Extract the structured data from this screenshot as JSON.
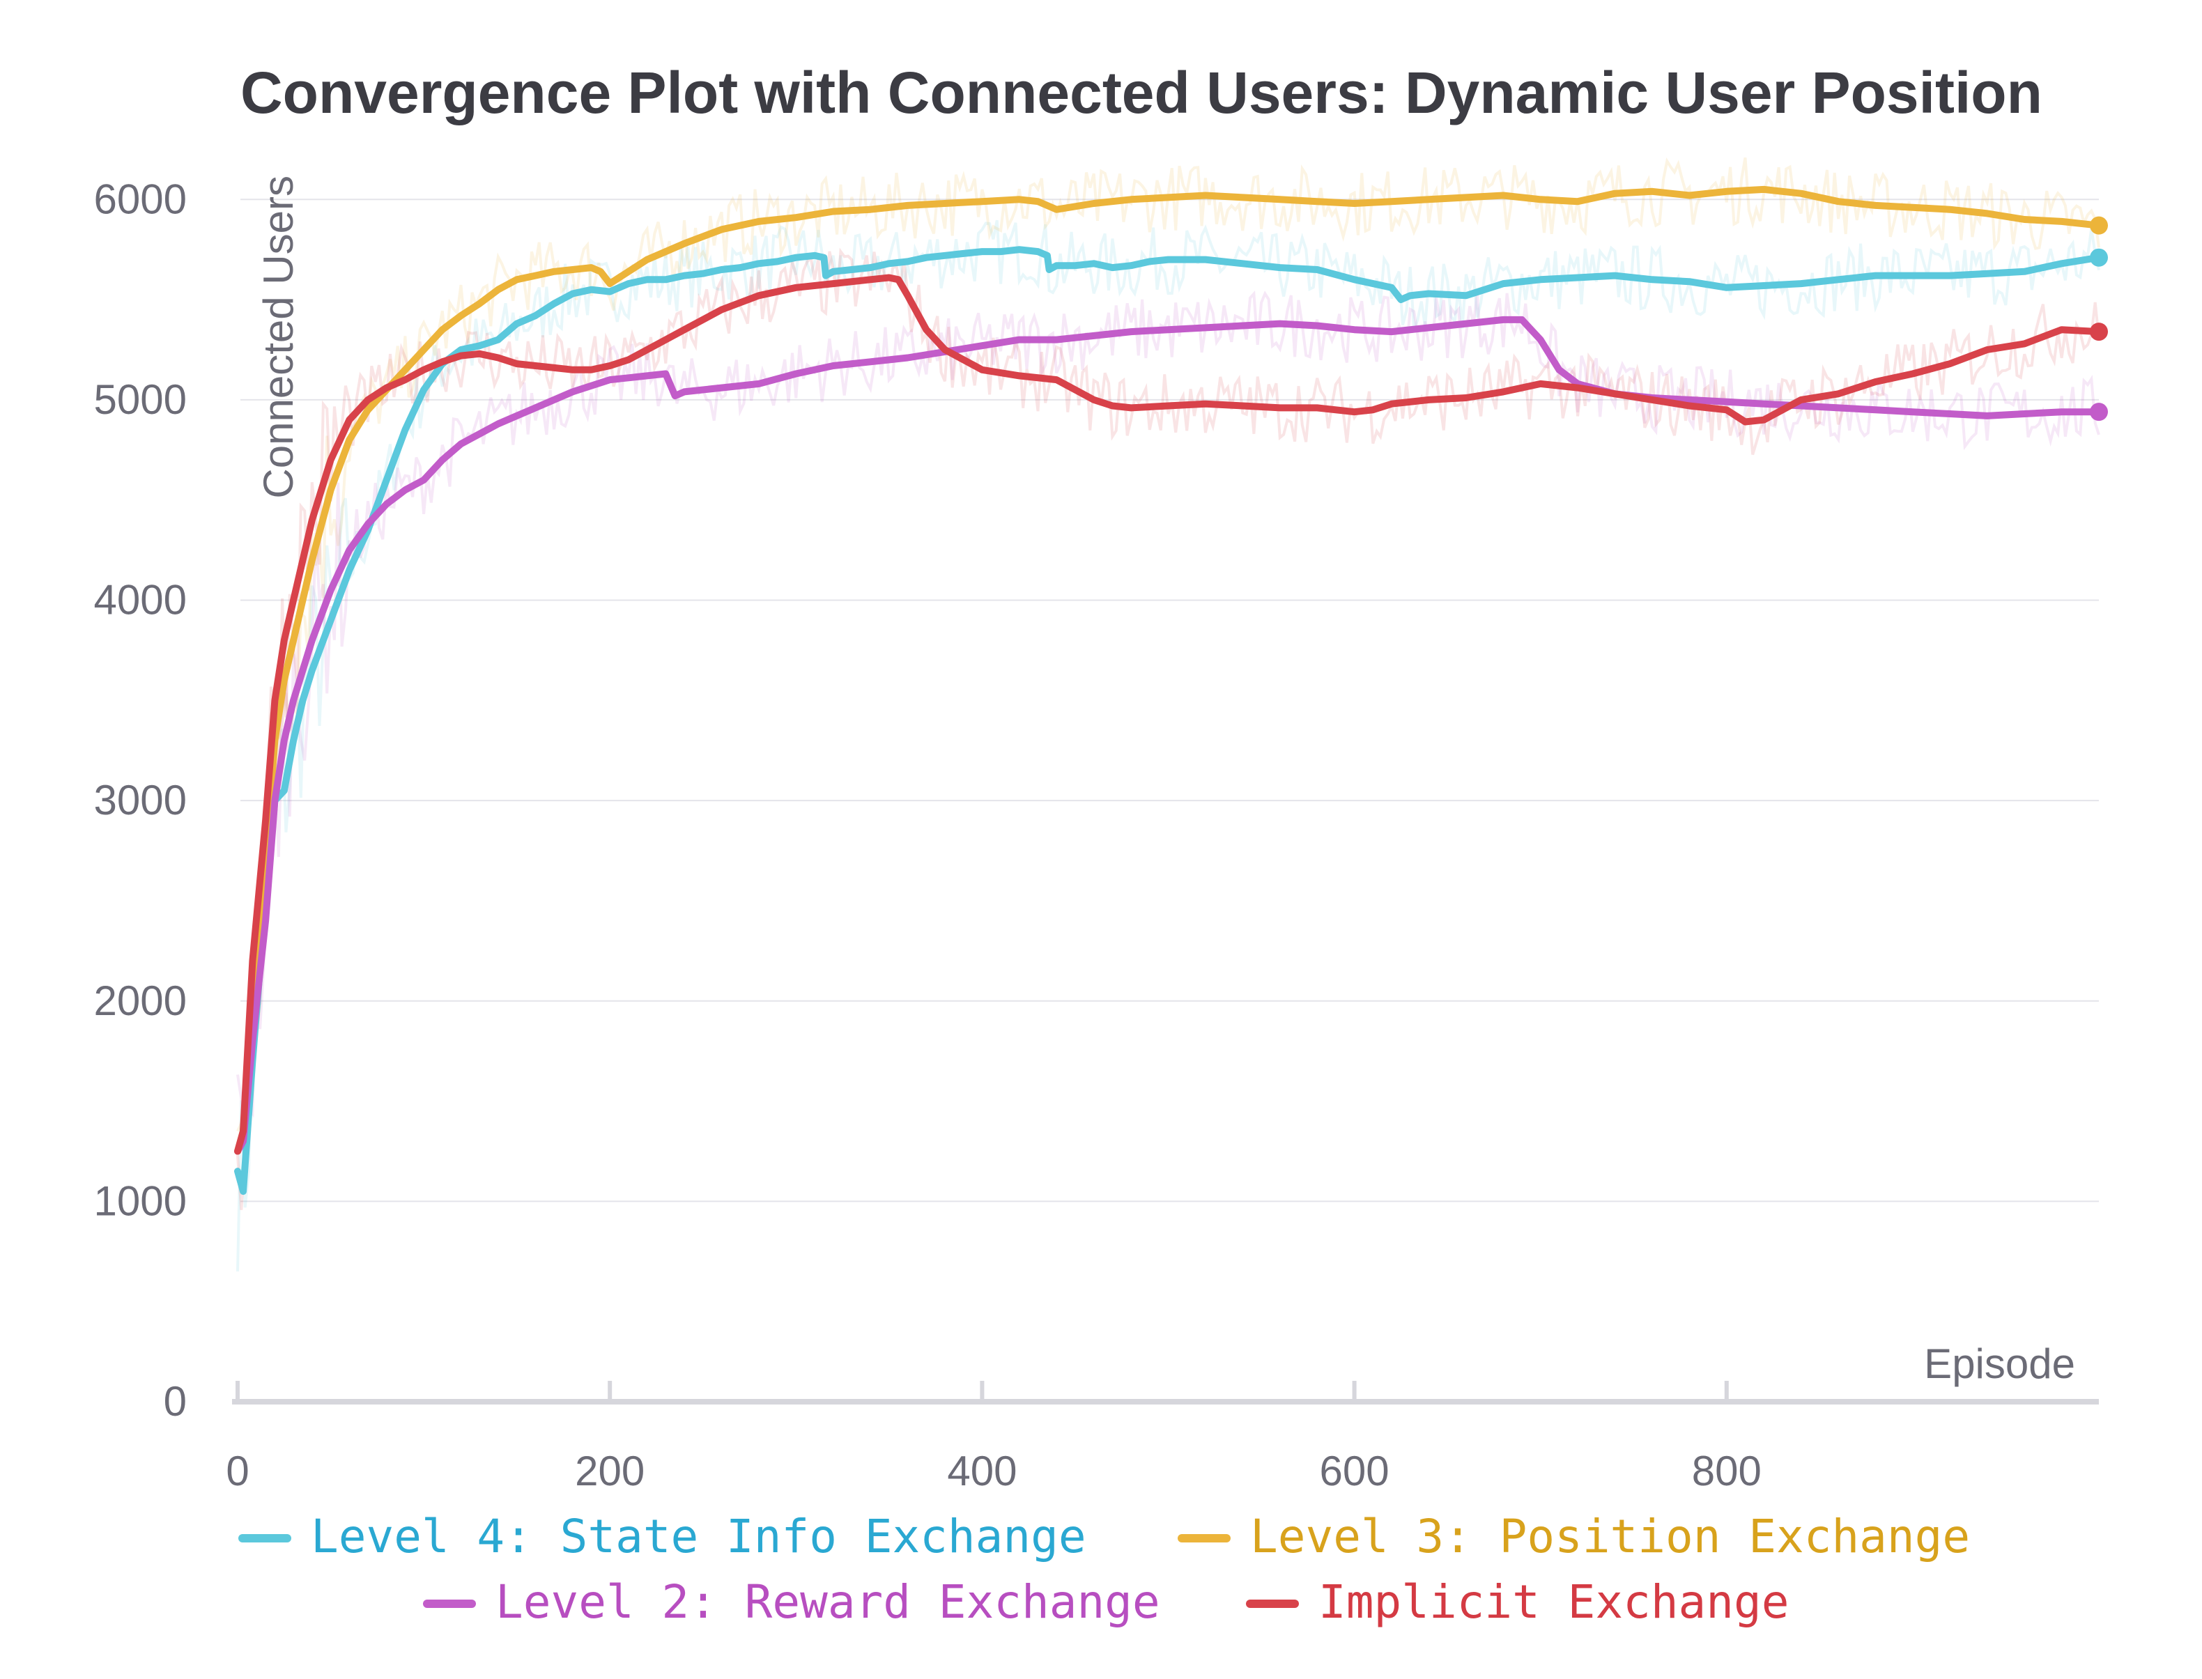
{
  "chart_data": {
    "type": "line",
    "title": "Convergence Plot with Connected Users: Dynamic User Position",
    "xlabel": "Episode",
    "ylabel": "Connected Users",
    "xlim": [
      0,
      1000
    ],
    "ylim": [
      0,
      6300
    ],
    "x_ticks": [
      0,
      200,
      400,
      600,
      800
    ],
    "y_ticks": [
      0,
      1000,
      2000,
      3000,
      4000,
      5000,
      6000
    ],
    "grid": true,
    "legend_position": "bottom",
    "series": [
      {
        "name": "Level 4: State Info Exchange",
        "color": "#5bc8dc",
        "label_color": "#2aa8d2",
        "x": [
          0,
          3,
          8,
          15,
          20,
          25,
          30,
          35,
          40,
          50,
          60,
          70,
          80,
          90,
          100,
          110,
          120,
          130,
          140,
          150,
          160,
          170,
          180,
          190,
          200,
          210,
          220,
          230,
          240,
          250,
          260,
          270,
          280,
          290,
          300,
          310,
          315,
          316,
          320,
          330,
          340,
          350,
          360,
          370,
          380,
          390,
          400,
          410,
          420,
          430,
          435,
          436,
          440,
          450,
          460,
          470,
          480,
          490,
          500,
          520,
          540,
          560,
          580,
          600,
          620,
          625,
          630,
          640,
          660,
          680,
          700,
          720,
          740,
          760,
          780,
          800,
          820,
          840,
          860,
          880,
          900,
          920,
          940,
          960,
          980,
          1000
        ],
        "values": [
          1150,
          1050,
          1700,
          2500,
          3000,
          3050,
          3300,
          3500,
          3650,
          3900,
          4150,
          4350,
          4600,
          4850,
          5050,
          5180,
          5250,
          5270,
          5300,
          5380,
          5420,
          5480,
          5530,
          5550,
          5540,
          5580,
          5600,
          5600,
          5620,
          5630,
          5650,
          5660,
          5680,
          5690,
          5710,
          5720,
          5710,
          5620,
          5640,
          5650,
          5660,
          5680,
          5690,
          5710,
          5720,
          5730,
          5740,
          5740,
          5750,
          5740,
          5720,
          5650,
          5670,
          5670,
          5680,
          5660,
          5670,
          5690,
          5700,
          5700,
          5680,
          5660,
          5650,
          5600,
          5560,
          5500,
          5520,
          5530,
          5520,
          5580,
          5600,
          5610,
          5620,
          5600,
          5590,
          5560,
          5570,
          5580,
          5600,
          5620,
          5620,
          5620,
          5630,
          5640,
          5680,
          5710
        ]
      },
      {
        "name": "Level 3: Position Exchange",
        "color": "#ecb43a",
        "label_color": "#d8a21c",
        "x": [
          0,
          3,
          8,
          15,
          20,
          25,
          30,
          40,
          50,
          60,
          70,
          80,
          90,
          100,
          110,
          120,
          130,
          140,
          150,
          160,
          170,
          180,
          190,
          195,
          200,
          210,
          220,
          240,
          260,
          280,
          300,
          320,
          340,
          360,
          380,
          400,
          420,
          430,
          440,
          460,
          480,
          500,
          520,
          540,
          560,
          580,
          600,
          620,
          640,
          660,
          680,
          700,
          720,
          740,
          760,
          780,
          800,
          820,
          840,
          860,
          880,
          900,
          920,
          940,
          960,
          980,
          1000
        ],
        "values": [
          1250,
          1350,
          1900,
          2700,
          3300,
          3600,
          3800,
          4200,
          4550,
          4800,
          4950,
          5050,
          5150,
          5250,
          5350,
          5420,
          5480,
          5550,
          5600,
          5620,
          5640,
          5650,
          5660,
          5640,
          5580,
          5640,
          5700,
          5780,
          5850,
          5890,
          5910,
          5940,
          5950,
          5970,
          5980,
          5990,
          6000,
          5990,
          5950,
          5980,
          6000,
          6010,
          6020,
          6010,
          6000,
          5990,
          5980,
          5990,
          6000,
          6010,
          6020,
          6000,
          5990,
          6030,
          6040,
          6020,
          6040,
          6050,
          6030,
          5990,
          5970,
          5960,
          5950,
          5930,
          5900,
          5890,
          5870
        ]
      },
      {
        "name": "Level 2: Reward Exchange",
        "color": "#c25cc9",
        "label_color": "#b74ec0",
        "x": [
          0,
          3,
          8,
          15,
          20,
          25,
          30,
          40,
          50,
          60,
          70,
          80,
          90,
          100,
          110,
          120,
          130,
          140,
          150,
          160,
          170,
          180,
          190,
          200,
          210,
          220,
          230,
          235,
          240,
          260,
          280,
          300,
          320,
          340,
          360,
          380,
          400,
          420,
          440,
          460,
          480,
          500,
          520,
          540,
          560,
          580,
          600,
          620,
          640,
          660,
          680,
          690,
          700,
          710,
          720,
          740,
          760,
          780,
          800,
          820,
          840,
          860,
          880,
          900,
          920,
          940,
          960,
          980,
          1000
        ],
        "values": [
          1250,
          1300,
          1800,
          2400,
          3000,
          3300,
          3500,
          3800,
          4050,
          4250,
          4380,
          4480,
          4550,
          4600,
          4700,
          4780,
          4830,
          4880,
          4920,
          4960,
          5000,
          5040,
          5070,
          5100,
          5110,
          5120,
          5130,
          5020,
          5040,
          5060,
          5080,
          5130,
          5170,
          5190,
          5210,
          5240,
          5270,
          5300,
          5300,
          5320,
          5340,
          5350,
          5360,
          5370,
          5380,
          5370,
          5350,
          5340,
          5360,
          5380,
          5400,
          5400,
          5300,
          5150,
          5080,
          5030,
          5010,
          5000,
          4990,
          4980,
          4970,
          4960,
          4950,
          4940,
          4930,
          4920,
          4930,
          4940,
          4940
        ]
      },
      {
        "name": "Implicit Exchange",
        "color": "#d8424a",
        "label_color": "#d43a43",
        "x": [
          0,
          3,
          8,
          15,
          20,
          25,
          30,
          35,
          40,
          50,
          60,
          70,
          80,
          90,
          100,
          110,
          120,
          130,
          140,
          150,
          160,
          170,
          180,
          190,
          200,
          210,
          220,
          230,
          240,
          260,
          280,
          300,
          320,
          340,
          350,
          355,
          360,
          370,
          380,
          400,
          420,
          440,
          450,
          460,
          470,
          480,
          500,
          520,
          540,
          560,
          580,
          600,
          610,
          620,
          640,
          660,
          680,
          700,
          720,
          740,
          760,
          780,
          800,
          810,
          820,
          830,
          840,
          860,
          880,
          900,
          920,
          940,
          960,
          980,
          1000
        ],
        "values": [
          1250,
          1350,
          2200,
          2900,
          3500,
          3800,
          4000,
          4200,
          4400,
          4700,
          4900,
          5000,
          5060,
          5100,
          5150,
          5190,
          5220,
          5230,
          5210,
          5180,
          5170,
          5160,
          5150,
          5150,
          5170,
          5200,
          5250,
          5300,
          5350,
          5450,
          5520,
          5560,
          5580,
          5600,
          5610,
          5600,
          5520,
          5350,
          5250,
          5150,
          5120,
          5100,
          5050,
          5000,
          4970,
          4960,
          4970,
          4980,
          4970,
          4960,
          4960,
          4940,
          4950,
          4980,
          5000,
          5010,
          5040,
          5080,
          5060,
          5030,
          5000,
          4970,
          4950,
          4890,
          4900,
          4950,
          5000,
          5030,
          5090,
          5130,
          5180,
          5250,
          5280,
          5350,
          5340
        ]
      }
    ]
  }
}
